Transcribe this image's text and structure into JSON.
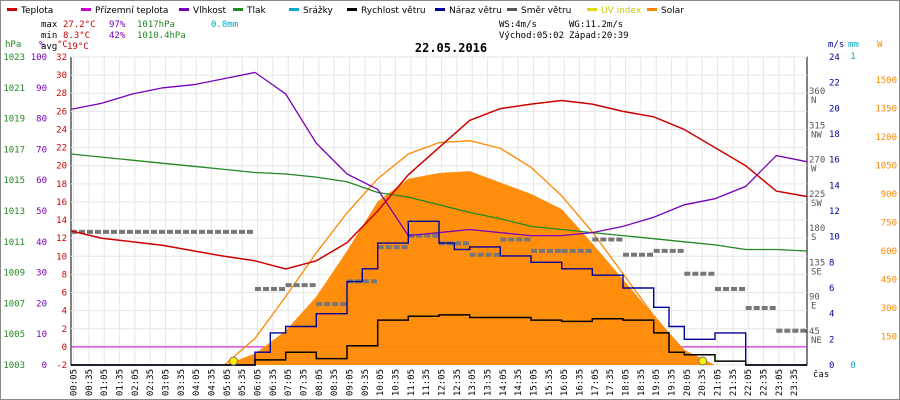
{
  "chart_data": {
    "type": "line",
    "title": "22.05.2016",
    "legend": [
      {
        "name": "Teplota",
        "color": "#cc0000"
      },
      {
        "name": "Přízemní teplota",
        "color": "#cc00cc"
      },
      {
        "name": "Vlhkost",
        "color": "#7700bb"
      },
      {
        "name": "Tlak",
        "color": "#228822"
      },
      {
        "name": "Srážky",
        "color": "#00aacc"
      },
      {
        "name": "Rychlost větru",
        "color": "#000000"
      },
      {
        "name": "Náraz větru",
        "color": "#000099"
      },
      {
        "name": "Směr větru",
        "color": "#555555"
      },
      {
        "name": "UV index",
        "color": "#dddd00"
      },
      {
        "name": "Solar",
        "color": "#ff8800"
      }
    ],
    "stats": {
      "max_label": "max",
      "max_temp": "27.2°C",
      "max_hum": "97%",
      "max_press": "1017hPa",
      "max_rain": "0.0mm",
      "min_label": "min",
      "min_temp": "8.3°C",
      "min_hum": "42%",
      "min_press": "1010.4hPa",
      "avg_label": "avg",
      "avg_temp": "19°C",
      "ws": "WS:4m/s",
      "wg": "WG:11.2m/s",
      "sunrise": "Východ:05:02",
      "sunset": "Západ:20:39"
    },
    "axes": {
      "press": {
        "unit": "hPa",
        "ticks": [
          "1023",
          "1021",
          "1019",
          "1017",
          "1015",
          "1013",
          "1011",
          "1009",
          "1007",
          "1005",
          "1003"
        ],
        "color": "#228822"
      },
      "hum": {
        "unit": "%",
        "ticks": [
          "100",
          "90",
          "80",
          "70",
          "60",
          "50",
          "40",
          "30",
          "20",
          "10",
          "0"
        ],
        "color": "#7700bb"
      },
      "temp": {
        "unit": "°C",
        "ticks": [
          "32",
          "30",
          "28",
          "26",
          "24",
          "22",
          "20",
          "18",
          "16",
          "14",
          "12",
          "10",
          "8",
          "6",
          "4",
          "2",
          "0",
          "-2"
        ],
        "color": "#cc0000"
      },
      "dir": {
        "ticks": [
          "360",
          "N",
          "315",
          "NW",
          "270",
          "W",
          "225",
          "SW",
          "180",
          "S",
          "135",
          "SE",
          "90",
          "E",
          "45",
          "NE"
        ],
        "color": "#555555"
      },
      "wind": {
        "unit": "m/s",
        "ticks": [
          "24",
          "22",
          "20",
          "18",
          "16",
          "14",
          "12",
          "10",
          "8",
          "6",
          "4",
          "2",
          "0"
        ],
        "color": "#000099"
      },
      "rain": {
        "unit": "mm",
        "ticks": [
          "1",
          "0"
        ],
        "color": "#00aacc"
      },
      "solar": {
        "unit": "W",
        "ticks": [
          "1500",
          "1350",
          "1200",
          "1050",
          "900",
          "750",
          "600",
          "450",
          "300",
          "150"
        ],
        "color": "#ff8800"
      },
      "x_unit": "čas",
      "x_ticks": [
        "00:05",
        "00:35",
        "01:05",
        "01:35",
        "02:05",
        "02:35",
        "03:05",
        "03:35",
        "04:05",
        "04:35",
        "05:05",
        "05:35",
        "06:05",
        "06:35",
        "07:05",
        "07:35",
        "08:05",
        "08:35",
        "09:05",
        "09:35",
        "10:05",
        "10:35",
        "11:05",
        "11:35",
        "12:05",
        "12:35",
        "13:05",
        "13:35",
        "14:05",
        "14:35",
        "15:05",
        "15:35",
        "16:05",
        "16:35",
        "17:05",
        "17:35",
        "18:05",
        "18:35",
        "19:05",
        "19:35",
        "20:05",
        "20:35",
        "21:05",
        "21:35",
        "22:05",
        "22:35",
        "23:05",
        "23:35"
      ]
    },
    "series": {
      "temperature_C": {
        "x": [
          0,
          1,
          2,
          3,
          4,
          5,
          6,
          7,
          8,
          9,
          10,
          11,
          12,
          13,
          14,
          15,
          16,
          17,
          18,
          19,
          20,
          21,
          22,
          23,
          24
        ],
        "y": [
          12.8,
          12.0,
          11.6,
          11.2,
          10.6,
          10.0,
          9.5,
          8.6,
          9.5,
          11.5,
          15.0,
          19.0,
          22.0,
          25.0,
          26.3,
          26.8,
          27.2,
          26.8,
          26.0,
          25.4,
          24.0,
          22.0,
          20.0,
          17.2,
          16.6
        ]
      },
      "humidity_pct": {
        "x": [
          0,
          1,
          2,
          3,
          4,
          5,
          6,
          7,
          8,
          9,
          10,
          11,
          12,
          13,
          14,
          15,
          16,
          17,
          18,
          19,
          20,
          21,
          22,
          23,
          24
        ],
        "y": [
          83,
          85,
          88,
          90,
          91,
          93,
          95,
          88,
          72,
          62,
          57,
          42,
          43,
          44,
          43,
          42,
          42,
          43,
          45,
          48,
          52,
          54,
          58,
          68,
          66
        ]
      },
      "pressure_hPa": {
        "x": [
          0,
          1,
          2,
          3,
          4,
          5,
          6,
          7,
          8,
          9,
          10,
          11,
          12,
          13,
          14,
          15,
          16,
          17,
          18,
          19,
          20,
          21,
          22,
          23,
          24
        ],
        "y": [
          1016.7,
          1016.5,
          1016.3,
          1016.1,
          1015.9,
          1015.7,
          1015.5,
          1015.4,
          1015.2,
          1014.9,
          1014.2,
          1013.9,
          1013.4,
          1012.9,
          1012.5,
          1012.0,
          1011.8,
          1011.6,
          1011.4,
          1011.2,
          1011.0,
          1010.8,
          1010.5,
          1010.5,
          1010.4
        ]
      },
      "wind_speed_ms": {
        "x": [
          0,
          5,
          6,
          7,
          8,
          9,
          10,
          11,
          12,
          13,
          14,
          15,
          16,
          17,
          18,
          19,
          19.5,
          20,
          21,
          22,
          24
        ],
        "y": [
          0,
          0,
          0.4,
          1.0,
          0.5,
          1.5,
          3.5,
          3.8,
          3.9,
          3.7,
          3.7,
          3.5,
          3.4,
          3.6,
          3.5,
          2.5,
          1.0,
          0.8,
          0.3,
          0,
          0
        ]
      },
      "wind_gust_ms": {
        "x": [
          0,
          5,
          6,
          6.5,
          7,
          8,
          9,
          9.5,
          10,
          11,
          12,
          12.5,
          13,
          14,
          15,
          16,
          17,
          18,
          19,
          19.5,
          20,
          21,
          22,
          24
        ],
        "y": [
          0,
          0,
          1.0,
          2.5,
          3.0,
          4.0,
          6.5,
          7.5,
          9.5,
          11.2,
          9.5,
          9.0,
          9.2,
          8.5,
          8.0,
          7.5,
          7.0,
          6.0,
          4.5,
          3.0,
          2.0,
          2.5,
          0,
          0
        ]
      },
      "wind_dir_deg": {
        "x": [
          0,
          6,
          7,
          8,
          9,
          10,
          11,
          12,
          13,
          14,
          15,
          16,
          17,
          18,
          19,
          20,
          21,
          22,
          23
        ],
        "y": [
          175,
          100,
          105,
          80,
          110,
          155,
          170,
          160,
          145,
          165,
          150,
          150,
          165,
          145,
          150,
          120,
          100,
          75,
          45
        ]
      },
      "solar_Wm2": {
        "x": [
          5,
          6,
          7,
          8,
          9,
          10,
          11,
          12,
          13,
          14,
          15,
          16,
          17,
          18,
          19,
          20,
          21
        ],
        "y": [
          0,
          60,
          180,
          360,
          600,
          860,
          980,
          1010,
          1020,
          960,
          900,
          820,
          640,
          450,
          260,
          80,
          0
        ]
      },
      "solar_theoretical_Wm2": {
        "x": [
          5,
          6,
          7,
          8,
          9,
          10,
          11,
          12,
          13,
          14,
          15,
          16,
          17,
          18,
          19,
          20,
          20.6
        ],
        "y": [
          0,
          140,
          360,
          590,
          800,
          980,
          1110,
          1170,
          1180,
          1140,
          1040,
          890,
          700,
          480,
          260,
          70,
          0
        ]
      },
      "uv_markers_h": [
        5.3,
        20.6
      ]
    }
  }
}
